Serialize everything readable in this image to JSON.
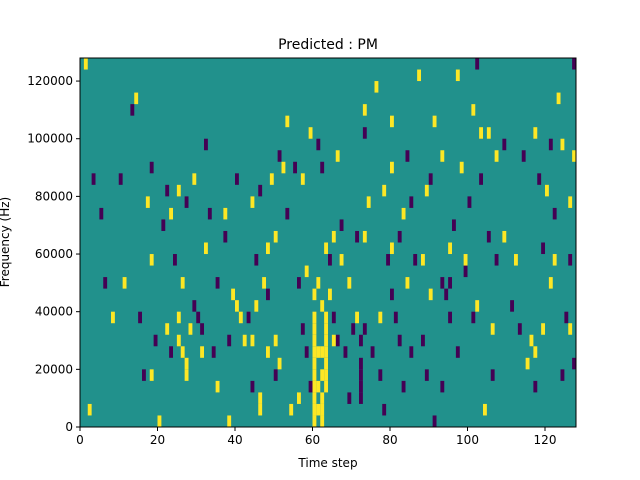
{
  "chart_data": {
    "type": "heatmap",
    "title": "Predicted : PM",
    "xlabel": "Time step",
    "ylabel": "Frequency (Hz)",
    "xlim": [
      0,
      128
    ],
    "ylim": [
      0,
      128000
    ],
    "x_ticks": [
      0,
      20,
      40,
      60,
      80,
      100,
      120
    ],
    "x_tick_labels": [
      "0",
      "20",
      "40",
      "60",
      "80",
      "100",
      "120"
    ],
    "y_ticks": [
      0,
      20000,
      40000,
      60000,
      80000,
      100000,
      120000
    ],
    "y_tick_labels": [
      "0",
      "20000",
      "40000",
      "60000",
      "80000",
      "100000",
      "120000"
    ],
    "grid": false,
    "colormap": "viridis",
    "colors": {
      "background": "#21918c",
      "high": "#fde725",
      "low": "#440154"
    },
    "cell_height": 4000,
    "high_cells": [
      [
        1,
        124000
      ],
      [
        2,
        4000
      ],
      [
        14,
        112000
      ],
      [
        17,
        76000
      ],
      [
        18,
        56000
      ],
      [
        18,
        16000
      ],
      [
        20,
        0
      ],
      [
        22,
        32000
      ],
      [
        23,
        72000
      ],
      [
        25,
        80000
      ],
      [
        25,
        36000
      ],
      [
        25,
        28000
      ],
      [
        26,
        48000
      ],
      [
        26,
        24000
      ],
      [
        27,
        20000
      ],
      [
        27,
        16000
      ],
      [
        28,
        32000
      ],
      [
        29,
        84000
      ],
      [
        35,
        12000
      ],
      [
        37,
        72000
      ],
      [
        38,
        0
      ],
      [
        39,
        44000
      ],
      [
        40,
        40000
      ],
      [
        41,
        36000
      ],
      [
        42,
        28000
      ],
      [
        44,
        28000
      ],
      [
        45,
        40000
      ],
      [
        46,
        4000
      ],
      [
        46,
        8000
      ],
      [
        47,
        48000
      ],
      [
        48,
        60000
      ],
      [
        48,
        24000
      ],
      [
        49,
        84000
      ],
      [
        50,
        28000
      ],
      [
        51,
        20000
      ],
      [
        52,
        88000
      ],
      [
        53,
        104000
      ],
      [
        54,
        4000
      ],
      [
        56,
        8000
      ],
      [
        57,
        84000
      ],
      [
        58,
        52000
      ],
      [
        59,
        100000
      ],
      [
        60,
        44000
      ],
      [
        60,
        36000
      ],
      [
        60,
        32000
      ],
      [
        60,
        28000
      ],
      [
        60,
        24000
      ],
      [
        60,
        20000
      ],
      [
        60,
        16000
      ],
      [
        60,
        12000
      ],
      [
        60,
        8000
      ],
      [
        60,
        4000
      ],
      [
        60,
        0
      ],
      [
        61,
        48000
      ],
      [
        61,
        24000
      ],
      [
        61,
        12000
      ],
      [
        61,
        4000
      ],
      [
        62,
        40000
      ],
      [
        62,
        24000
      ],
      [
        62,
        16000
      ],
      [
        62,
        8000
      ],
      [
        62,
        4000
      ],
      [
        62,
        0
      ],
      [
        63,
        60000
      ],
      [
        63,
        36000
      ],
      [
        63,
        32000
      ],
      [
        63,
        28000
      ],
      [
        63,
        24000
      ],
      [
        63,
        20000
      ],
      [
        63,
        16000
      ],
      [
        63,
        12000
      ],
      [
        64,
        44000
      ],
      [
        65,
        64000
      ],
      [
        65,
        28000
      ],
      [
        66,
        92000
      ],
      [
        67,
        56000
      ],
      [
        69,
        48000
      ],
      [
        73,
        108000
      ],
      [
        73,
        64000
      ],
      [
        74,
        76000
      ],
      [
        76,
        116000
      ],
      [
        77,
        36000
      ],
      [
        78,
        80000
      ],
      [
        80,
        104000
      ],
      [
        80,
        60000
      ],
      [
        80,
        88000
      ],
      [
        83,
        72000
      ],
      [
        87,
        120000
      ],
      [
        88,
        56000
      ],
      [
        89,
        80000
      ],
      [
        90,
        44000
      ],
      [
        91,
        104000
      ],
      [
        93,
        92000
      ],
      [
        97,
        120000
      ],
      [
        98,
        88000
      ],
      [
        99,
        56000
      ],
      [
        101,
        108000
      ],
      [
        102,
        40000
      ],
      [
        104,
        4000
      ],
      [
        105,
        100000
      ],
      [
        106,
        32000
      ],
      [
        107,
        92000
      ],
      [
        109,
        64000
      ],
      [
        112,
        56000
      ],
      [
        115,
        20000
      ],
      [
        116,
        28000
      ],
      [
        117,
        100000
      ],
      [
        117,
        24000
      ],
      [
        119,
        32000
      ],
      [
        120,
        80000
      ],
      [
        121,
        48000
      ],
      [
        122,
        56000
      ],
      [
        123,
        112000
      ],
      [
        124,
        96000
      ],
      [
        126,
        32000
      ],
      [
        126,
        76000
      ],
      [
        127,
        92000
      ],
      [
        95,
        60000
      ],
      [
        84,
        48000
      ],
      [
        50,
        64000
      ],
      [
        31,
        24000
      ],
      [
        32,
        60000
      ],
      [
        8,
        36000
      ],
      [
        11,
        48000
      ],
      [
        44,
        76000
      ],
      [
        71,
        36000
      ],
      [
        103,
        100000
      ]
    ],
    "low_cells": [
      [
        3,
        84000
      ],
      [
        5,
        72000
      ],
      [
        6,
        48000
      ],
      [
        10,
        84000
      ],
      [
        13,
        108000
      ],
      [
        15,
        36000
      ],
      [
        16,
        16000
      ],
      [
        18,
        88000
      ],
      [
        19,
        28000
      ],
      [
        21,
        68000
      ],
      [
        22,
        80000
      ],
      [
        23,
        24000
      ],
      [
        24,
        56000
      ],
      [
        27,
        76000
      ],
      [
        29,
        40000
      ],
      [
        30,
        36000
      ],
      [
        31,
        32000
      ],
      [
        32,
        96000
      ],
      [
        33,
        72000
      ],
      [
        34,
        24000
      ],
      [
        35,
        48000
      ],
      [
        37,
        64000
      ],
      [
        38,
        28000
      ],
      [
        40,
        84000
      ],
      [
        43,
        36000
      ],
      [
        44,
        12000
      ],
      [
        45,
        56000
      ],
      [
        46,
        80000
      ],
      [
        48,
        44000
      ],
      [
        50,
        16000
      ],
      [
        51,
        92000
      ],
      [
        53,
        72000
      ],
      [
        55,
        88000
      ],
      [
        56,
        48000
      ],
      [
        57,
        32000
      ],
      [
        58,
        24000
      ],
      [
        59,
        12000
      ],
      [
        61,
        96000
      ],
      [
        64,
        56000
      ],
      [
        65,
        36000
      ],
      [
        66,
        28000
      ],
      [
        67,
        68000
      ],
      [
        68,
        24000
      ],
      [
        69,
        8000
      ],
      [
        70,
        32000
      ],
      [
        71,
        64000
      ],
      [
        72,
        28000
      ],
      [
        72,
        20000
      ],
      [
        72,
        16000
      ],
      [
        72,
        12000
      ],
      [
        72,
        8000
      ],
      [
        73,
        32000
      ],
      [
        75,
        24000
      ],
      [
        77,
        16000
      ],
      [
        78,
        4000
      ],
      [
        79,
        56000
      ],
      [
        80,
        44000
      ],
      [
        81,
        36000
      ],
      [
        82,
        64000
      ],
      [
        82,
        28000
      ],
      [
        83,
        12000
      ],
      [
        84,
        92000
      ],
      [
        85,
        76000
      ],
      [
        85,
        24000
      ],
      [
        86,
        56000
      ],
      [
        88,
        28000
      ],
      [
        89,
        16000
      ],
      [
        90,
        84000
      ],
      [
        91,
        0
      ],
      [
        93,
        12000
      ],
      [
        94,
        44000
      ],
      [
        95,
        36000
      ],
      [
        96,
        68000
      ],
      [
        97,
        24000
      ],
      [
        99,
        52000
      ],
      [
        100,
        76000
      ],
      [
        101,
        36000
      ],
      [
        102,
        124000
      ],
      [
        103,
        84000
      ],
      [
        105,
        64000
      ],
      [
        106,
        16000
      ],
      [
        107,
        56000
      ],
      [
        109,
        96000
      ],
      [
        111,
        40000
      ],
      [
        113,
        32000
      ],
      [
        114,
        92000
      ],
      [
        117,
        12000
      ],
      [
        118,
        84000
      ],
      [
        119,
        60000
      ],
      [
        121,
        96000
      ],
      [
        122,
        72000
      ],
      [
        124,
        16000
      ],
      [
        125,
        36000
      ],
      [
        126,
        56000
      ],
      [
        127,
        20000
      ],
      [
        127,
        124000
      ],
      [
        93,
        48000
      ],
      [
        95,
        48000
      ],
      [
        62,
        88000
      ],
      [
        73,
        100000
      ]
    ]
  }
}
